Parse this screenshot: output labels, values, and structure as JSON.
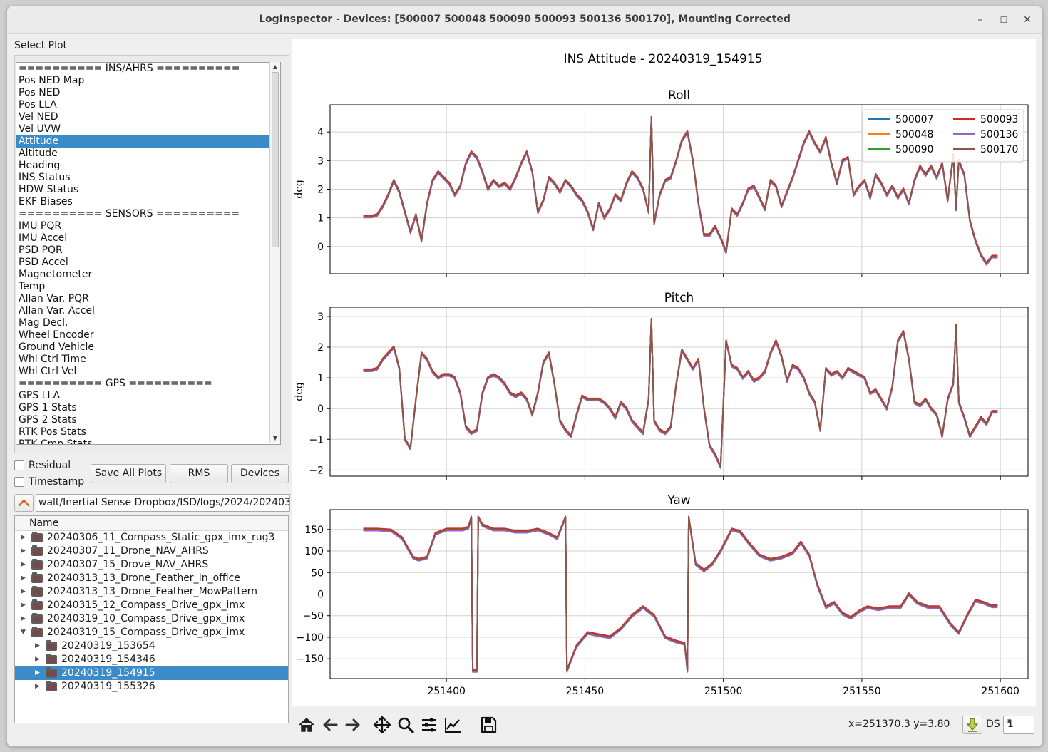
{
  "window": {
    "title": "LogInspector  -  Devices: [500007 500048 500090 500093 500136 500170], Mounting Corrected",
    "minimize": "–",
    "maximize": "☐",
    "close": "✕"
  },
  "select_plot": {
    "label": "Select Plot",
    "items": [
      "========== INS/AHRS ==========",
      "Pos NED Map",
      "Pos NED",
      "Pos LLA",
      "Vel NED",
      "Vel UVW",
      "Attitude",
      "Altitude",
      "Heading",
      "INS Status",
      "HDW Status",
      "EKF Biases",
      "========== SENSORS ==========",
      "IMU PQR",
      "IMU Accel",
      "PSD PQR",
      "PSD Accel",
      "Magnetometer",
      "Temp",
      "Allan Var. PQR",
      "Allan Var. Accel",
      "Mag Decl.",
      "Wheel Encoder",
      "Ground Vehicle",
      "Whl Ctrl Time",
      "Whl Ctrl Vel",
      "========== GPS ==========",
      "GPS LLA",
      "GPS 1 Stats",
      "GPS 2 Stats",
      "RTK Pos Stats",
      "RTK Cmp Stats"
    ],
    "selected": "Attitude"
  },
  "options": {
    "residual": "Residual",
    "timestamp": "Timestamp",
    "save_all": "Save All Plots",
    "rms": "RMS",
    "devices": "Devices"
  },
  "path": "walt/Inertial Sense Dropbox/ISD/logs/2024/202403",
  "tree": {
    "header": "Name",
    "rows": [
      {
        "label": "20240306_11_Compass_Static_gpx_imx_rug3",
        "depth": 0,
        "open": false,
        "selected": false
      },
      {
        "label": "20240307_11_Drone_NAV_AHRS",
        "depth": 0,
        "open": false,
        "selected": false
      },
      {
        "label": "20240307_15_Drove_NAV_AHRS",
        "depth": 0,
        "open": false,
        "selected": false
      },
      {
        "label": "20240313_13_Drone_Feather_In_office",
        "depth": 0,
        "open": false,
        "selected": false
      },
      {
        "label": "20240313_13_Drone_Feather_MowPattern",
        "depth": 0,
        "open": false,
        "selected": false
      },
      {
        "label": "20240315_12_Compass_Drive_gpx_imx",
        "depth": 0,
        "open": false,
        "selected": false
      },
      {
        "label": "20240319_10_Compass_Drive_gpx_imx",
        "depth": 0,
        "open": false,
        "selected": false
      },
      {
        "label": "20240319_15_Compass_Drive_gpx_imx",
        "depth": 0,
        "open": true,
        "selected": false
      },
      {
        "label": "20240319_153654",
        "depth": 1,
        "open": false,
        "selected": false
      },
      {
        "label": "20240319_154346",
        "depth": 1,
        "open": false,
        "selected": false
      },
      {
        "label": "20240319_154915",
        "depth": 1,
        "open": false,
        "selected": true
      },
      {
        "label": "20240319_155326",
        "depth": 1,
        "open": false,
        "selected": false
      }
    ]
  },
  "toolbar": {
    "coords": "x=251370.3 y=3.80",
    "ds_label": "DS",
    "ds_value": "1",
    "icons": [
      "home-icon",
      "back-arrow-icon",
      "forward-arrow-icon",
      "pan-icon",
      "zoom-icon",
      "subplots-config-icon",
      "edit-axes-icon",
      "save-icon"
    ]
  },
  "chart_data": {
    "type": "line",
    "title": "INS Attitude - 20240319_154915",
    "x_ticks": [
      251400,
      251450,
      251500,
      251550,
      251600
    ],
    "xlim": [
      251358,
      251610
    ],
    "legend": {
      "placement": "top-right",
      "series": [
        {
          "name": "500007",
          "color": "#1f77b4"
        },
        {
          "name": "500048",
          "color": "#ff7f0e"
        },
        {
          "name": "500090",
          "color": "#2ca02c"
        },
        {
          "name": "500093",
          "color": "#d62728"
        },
        {
          "name": "500136",
          "color": "#9467bd"
        },
        {
          "name": "500170",
          "color": "#8c564b"
        }
      ]
    },
    "subplots": [
      {
        "title": "Roll",
        "ylabel": "deg",
        "ylim": [
          -0.95,
          4.95
        ],
        "yticks": [
          0,
          1,
          2,
          3,
          4
        ],
        "x": [
          251370,
          251373,
          251375,
          251377,
          251379,
          251381,
          251383,
          251385,
          251387,
          251389,
          251391,
          251393,
          251395,
          251397,
          251399,
          251401,
          251403,
          251405,
          251407,
          251409,
          251411,
          251413,
          251415,
          251417,
          251419,
          251421,
          251423,
          251425,
          251427,
          251429,
          251431,
          251433,
          251435,
          251437,
          251439,
          251441,
          251443,
          251445,
          251447,
          251449,
          251451,
          251453,
          251455,
          251457,
          251459,
          251461,
          251463,
          251465,
          251467,
          251469,
          251471,
          251473,
          251474,
          251475,
          251477,
          251479,
          251481,
          251483,
          251485,
          251487,
          251489,
          251491,
          251493,
          251495,
          251497,
          251499,
          251501,
          251503,
          251505,
          251507,
          251509,
          251511,
          251513,
          251515,
          251517,
          251519,
          251521,
          251523,
          251525,
          251527,
          251529,
          251531,
          251533,
          251535,
          251537,
          251539,
          251541,
          251543,
          251545,
          251547,
          251549,
          251551,
          251553,
          251555,
          251557,
          251559,
          251561,
          251563,
          251565,
          251567,
          251569,
          251571,
          251573,
          251575,
          251577,
          251579,
          251581,
          251583,
          251584,
          251585,
          251587,
          251589,
          251591,
          251593,
          251595,
          251597,
          251599
        ],
        "y": [
          1.05,
          1.05,
          1.1,
          1.4,
          1.8,
          2.3,
          1.9,
          1.2,
          0.5,
          1.1,
          0.2,
          1.5,
          2.3,
          2.6,
          2.4,
          2.2,
          1.8,
          2.1,
          2.9,
          3.3,
          3.1,
          2.6,
          2.0,
          2.3,
          2.1,
          2.2,
          2.0,
          2.4,
          2.9,
          3.3,
          2.6,
          1.2,
          1.6,
          2.4,
          2.2,
          1.9,
          2.3,
          2.1,
          1.8,
          1.6,
          1.2,
          0.6,
          1.5,
          1.0,
          1.3,
          1.8,
          1.6,
          2.2,
          2.6,
          2.4,
          2.0,
          1.2,
          4.5,
          0.8,
          1.8,
          2.3,
          2.4,
          3.0,
          3.7,
          4.0,
          3.0,
          1.5,
          0.4,
          0.4,
          0.7,
          0.3,
          -0.2,
          1.3,
          1.1,
          1.5,
          2.0,
          2.1,
          1.7,
          1.3,
          2.3,
          2.1,
          1.4,
          1.9,
          2.4,
          3.0,
          3.6,
          4.0,
          3.6,
          3.3,
          3.8,
          2.9,
          2.2,
          3.0,
          3.1,
          1.8,
          2.1,
          2.3,
          1.7,
          2.5,
          2.2,
          1.8,
          2.1,
          1.7,
          2.0,
          1.5,
          2.3,
          2.8,
          2.5,
          2.8,
          2.4,
          2.9,
          1.6,
          3.2,
          1.3,
          3.0,
          2.5,
          0.9,
          0.2,
          -0.3,
          -0.6,
          -0.35,
          -0.35
        ]
      },
      {
        "title": "Pitch",
        "ylabel": "deg",
        "ylim": [
          -2.2,
          3.3
        ],
        "yticks": [
          -2,
          -1,
          0,
          1,
          2,
          3
        ],
        "x": [
          251370,
          251373,
          251375,
          251377,
          251379,
          251381,
          251383,
          251385,
          251387,
          251389,
          251391,
          251393,
          251395,
          251397,
          251399,
          251401,
          251403,
          251405,
          251407,
          251409,
          251411,
          251413,
          251415,
          251417,
          251419,
          251421,
          251423,
          251425,
          251427,
          251429,
          251431,
          251433,
          251435,
          251437,
          251439,
          251441,
          251443,
          251445,
          251447,
          251449,
          251451,
          251453,
          251455,
          251457,
          251459,
          251461,
          251463,
          251465,
          251467,
          251469,
          251471,
          251473,
          251474,
          251475,
          251477,
          251479,
          251481,
          251483,
          251485,
          251487,
          251489,
          251491,
          251493,
          251495,
          251497,
          251499,
          251501,
          251503,
          251505,
          251507,
          251509,
          251511,
          251513,
          251515,
          251517,
          251519,
          251521,
          251523,
          251525,
          251527,
          251529,
          251531,
          251533,
          251535,
          251537,
          251539,
          251541,
          251543,
          251545,
          251547,
          251549,
          251551,
          251553,
          251555,
          251557,
          251559,
          251561,
          251563,
          251565,
          251567,
          251569,
          251571,
          251573,
          251575,
          251577,
          251579,
          251581,
          251583,
          251584,
          251585,
          251587,
          251589,
          251591,
          251593,
          251595,
          251597,
          251599
        ],
        "y": [
          1.25,
          1.25,
          1.3,
          1.6,
          1.8,
          2.0,
          1.3,
          -1.0,
          -1.3,
          0.3,
          1.8,
          1.6,
          1.2,
          1.0,
          1.1,
          1.1,
          1.0,
          0.5,
          -0.6,
          -0.8,
          -0.7,
          0.5,
          1.0,
          1.1,
          1.0,
          0.8,
          0.5,
          0.4,
          0.5,
          0.3,
          -0.2,
          0.5,
          1.5,
          1.8,
          0.8,
          -0.4,
          -0.7,
          -0.9,
          -0.2,
          0.4,
          0.3,
          0.3,
          0.3,
          0.2,
          0.0,
          -0.3,
          0.2,
          0.0,
          -0.4,
          -0.6,
          -0.8,
          0.3,
          2.9,
          -0.4,
          -0.7,
          -0.8,
          -0.6,
          0.8,
          1.9,
          1.6,
          1.3,
          1.6,
          0.0,
          -1.2,
          -1.5,
          -1.9,
          2.2,
          1.4,
          1.3,
          1.0,
          1.2,
          0.9,
          1.0,
          1.2,
          1.8,
          2.2,
          1.7,
          0.9,
          1.4,
          1.3,
          1.0,
          0.5,
          0.2,
          -0.7,
          1.3,
          1.1,
          1.2,
          1.0,
          1.3,
          1.2,
          1.1,
          1.0,
          0.5,
          0.6,
          0.3,
          0.0,
          0.7,
          2.2,
          2.5,
          1.6,
          0.2,
          0.1,
          0.3,
          0.0,
          -0.2,
          -0.9,
          0.3,
          0.8,
          2.7,
          0.2,
          -0.3,
          -0.9,
          -0.6,
          -0.3,
          -0.5,
          -0.1,
          -0.1
        ]
      },
      {
        "title": "Yaw",
        "ylabel": "",
        "ylim": [
          -196,
          196
        ],
        "yticks": [
          -150,
          -100,
          -50,
          0,
          50,
          100,
          150
        ],
        "x": [
          251370,
          251375,
          251380,
          251384,
          251388,
          251390,
          251393,
          251396,
          251400,
          251404,
          251406,
          251408,
          251409,
          251409.5,
          251411,
          251411.5,
          251413,
          251417,
          251421,
          251425,
          251429,
          251433,
          251437,
          251440,
          251443,
          251443.5,
          251447,
          251451,
          251455,
          251459,
          251463,
          251467,
          251471,
          251475,
          251479,
          251483,
          251486,
          251487,
          251487.5,
          251490,
          251493,
          251496,
          251499,
          251503,
          251506,
          251509,
          251513,
          251517,
          251521,
          251525,
          251528,
          251531,
          251534,
          251537,
          251540,
          251543,
          251546,
          251549,
          251552,
          251556,
          251560,
          251564,
          251567,
          251570,
          251574,
          251578,
          251582,
          251585,
          251588,
          251591,
          251594,
          251597,
          251599
        ],
        "y": [
          150,
          150,
          148,
          130,
          85,
          80,
          85,
          140,
          150,
          150,
          150,
          155,
          178,
          -178,
          -178,
          178,
          160,
          150,
          150,
          145,
          145,
          150,
          140,
          130,
          178,
          -178,
          -120,
          -90,
          -95,
          -100,
          -80,
          -50,
          -30,
          -50,
          -100,
          -110,
          -115,
          -178,
          178,
          70,
          55,
          70,
          100,
          150,
          145,
          120,
          90,
          80,
          85,
          95,
          120,
          90,
          20,
          -30,
          -20,
          -45,
          -55,
          -40,
          -30,
          -35,
          -30,
          -30,
          0,
          -20,
          -30,
          -30,
          -70,
          -90,
          -50,
          -15,
          -20,
          -28,
          -28
        ]
      }
    ]
  }
}
